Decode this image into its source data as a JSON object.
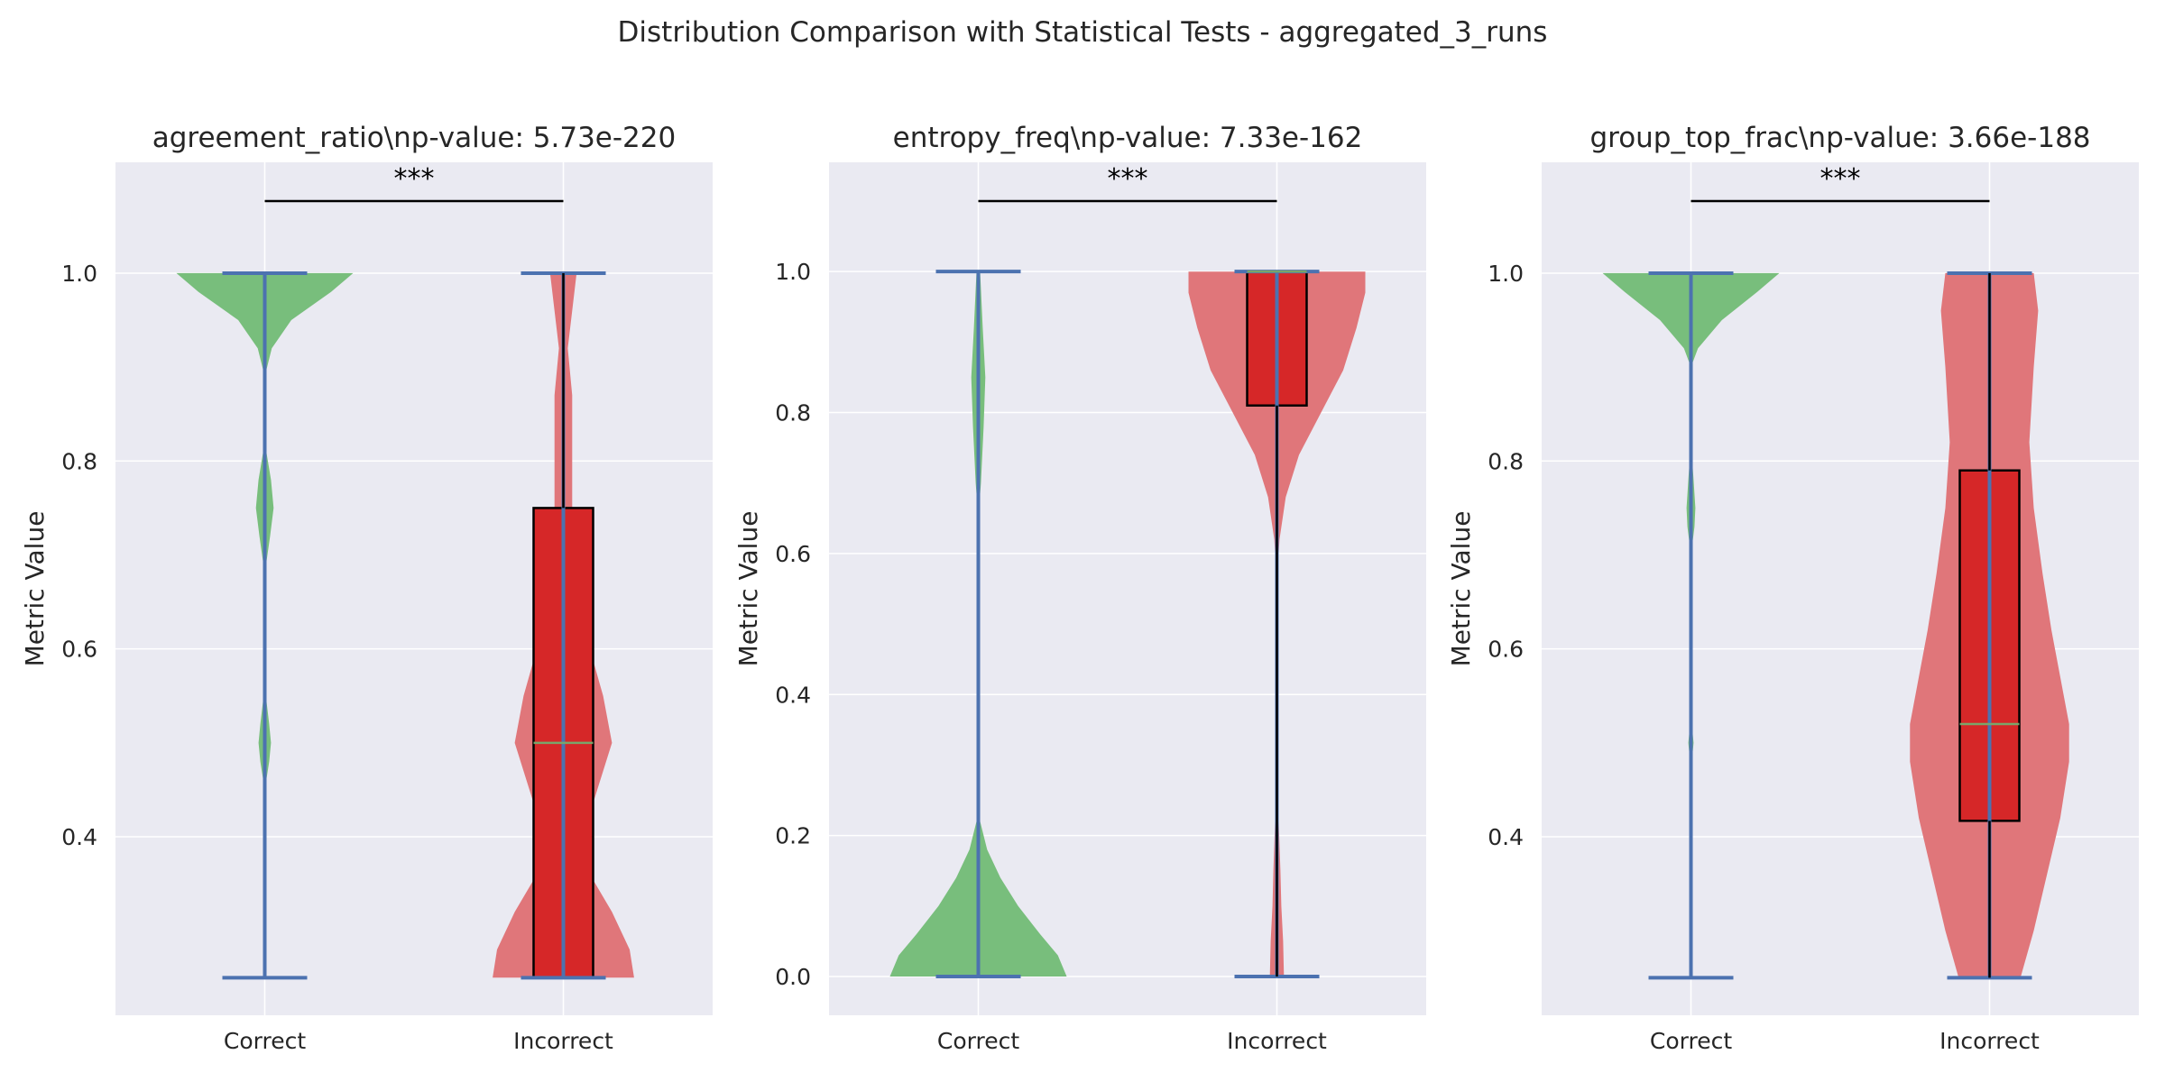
{
  "suptitle": "Distribution Comparison with Statistical Tests - aggregated_3_runs",
  "colors": {
    "correct": "#78be7c",
    "incorrect": "#e0767a",
    "box": "#d62728",
    "whisker": "#4c72b0",
    "median": "#7aa56a",
    "background": "#eaeaf2"
  },
  "chart_data": [
    {
      "type": "violin",
      "title": "agreement_ratio\\np-value: 5.73e-220",
      "ylabel": "Metric Value",
      "categories": [
        "Correct",
        "Incorrect"
      ],
      "ylim": [
        0.21,
        1.118
      ],
      "yticks": [
        "0.4",
        "0.6",
        "0.8",
        "1.0"
      ],
      "significance": "***",
      "grid": true,
      "series": [
        {
          "category": "Correct",
          "min": 0.25,
          "max": 1.0,
          "density": [
            [
              0.25,
              0
            ],
            [
              0.45,
              0
            ],
            [
              0.48,
              0.05
            ],
            [
              0.5,
              0.07
            ],
            [
              0.52,
              0.05
            ],
            [
              0.56,
              0
            ],
            [
              0.68,
              0
            ],
            [
              0.72,
              0.06
            ],
            [
              0.75,
              0.1
            ],
            [
              0.78,
              0.07
            ],
            [
              0.82,
              0
            ],
            [
              0.89,
              0
            ],
            [
              0.92,
              0.08
            ],
            [
              0.95,
              0.3
            ],
            [
              0.98,
              0.75
            ],
            [
              1.0,
              1.0
            ]
          ]
        },
        {
          "category": "Incorrect",
          "min": 0.25,
          "max": 1.0,
          "q1": 0.25,
          "median": 0.5,
          "q3": 0.75,
          "density": [
            [
              0.25,
              0.8
            ],
            [
              0.28,
              0.75
            ],
            [
              0.32,
              0.55
            ],
            [
              0.36,
              0.3
            ],
            [
              0.4,
              0.2
            ],
            [
              0.44,
              0.35
            ],
            [
              0.5,
              0.55
            ],
            [
              0.55,
              0.45
            ],
            [
              0.6,
              0.3
            ],
            [
              0.65,
              0.15
            ],
            [
              0.7,
              0.08
            ],
            [
              0.75,
              0.1
            ],
            [
              0.8,
              0.1
            ],
            [
              0.87,
              0.1
            ],
            [
              0.92,
              0.05
            ],
            [
              0.96,
              0.1
            ],
            [
              1.0,
              0.15
            ]
          ]
        }
      ]
    },
    {
      "type": "violin",
      "title": "entropy_freq\\np-value: 7.33e-162",
      "ylabel": "Metric Value",
      "categories": [
        "Correct",
        "Incorrect"
      ],
      "ylim": [
        -0.055,
        1.155
      ],
      "yticks": [
        "0.0",
        "0.2",
        "0.4",
        "0.6",
        "0.8",
        "1.0"
      ],
      "significance": "***",
      "grid": true,
      "series": [
        {
          "category": "Correct",
          "min": 0.0,
          "max": 1.0,
          "density": [
            [
              0.0,
              1.0
            ],
            [
              0.03,
              0.9
            ],
            [
              0.06,
              0.7
            ],
            [
              0.1,
              0.45
            ],
            [
              0.14,
              0.25
            ],
            [
              0.18,
              0.1
            ],
            [
              0.22,
              0.02
            ],
            [
              0.3,
              0
            ],
            [
              0.65,
              0
            ],
            [
              0.7,
              0.03
            ],
            [
              0.78,
              0.06
            ],
            [
              0.85,
              0.08
            ],
            [
              0.92,
              0.05
            ],
            [
              1.0,
              0.02
            ]
          ]
        },
        {
          "category": "Incorrect",
          "min": 0.0,
          "max": 1.0,
          "q1": 0.81,
          "median": 1.0,
          "q3": 1.0,
          "density": [
            [
              0.0,
              0.08
            ],
            [
              0.05,
              0.07
            ],
            [
              0.1,
              0.05
            ],
            [
              0.15,
              0.04
            ],
            [
              0.22,
              0.02
            ],
            [
              0.3,
              0
            ],
            [
              0.56,
              0
            ],
            [
              0.62,
              0.03
            ],
            [
              0.68,
              0.1
            ],
            [
              0.74,
              0.25
            ],
            [
              0.8,
              0.5
            ],
            [
              0.86,
              0.75
            ],
            [
              0.92,
              0.9
            ],
            [
              0.97,
              1.0
            ],
            [
              1.0,
              1.0
            ]
          ]
        }
      ]
    },
    {
      "type": "violin",
      "title": "group_top_frac\\np-value: 3.66e-188",
      "ylabel": "Metric Value",
      "categories": [
        "Correct",
        "Incorrect"
      ],
      "ylim": [
        0.21,
        1.118
      ],
      "yticks": [
        "0.4",
        "0.6",
        "0.8",
        "1.0"
      ],
      "significance": "***",
      "grid": true,
      "series": [
        {
          "category": "Correct",
          "min": 0.25,
          "max": 1.0,
          "density": [
            [
              0.25,
              0
            ],
            [
              0.47,
              0
            ],
            [
              0.5,
              0.03
            ],
            [
              0.53,
              0
            ],
            [
              0.7,
              0
            ],
            [
              0.73,
              0.04
            ],
            [
              0.75,
              0.05
            ],
            [
              0.78,
              0.03
            ],
            [
              0.82,
              0
            ],
            [
              0.9,
              0
            ],
            [
              0.92,
              0.08
            ],
            [
              0.95,
              0.35
            ],
            [
              0.98,
              0.75
            ],
            [
              1.0,
              1.0
            ]
          ]
        },
        {
          "category": "Incorrect",
          "min": 0.25,
          "max": 1.0,
          "q1": 0.417,
          "median": 0.52,
          "q3": 0.79,
          "density": [
            [
              0.25,
              0.35
            ],
            [
              0.3,
              0.5
            ],
            [
              0.36,
              0.65
            ],
            [
              0.42,
              0.8
            ],
            [
              0.48,
              0.9
            ],
            [
              0.52,
              0.9
            ],
            [
              0.57,
              0.8
            ],
            [
              0.62,
              0.7
            ],
            [
              0.68,
              0.6
            ],
            [
              0.75,
              0.5
            ],
            [
              0.82,
              0.45
            ],
            [
              0.9,
              0.5
            ],
            [
              0.96,
              0.55
            ],
            [
              1.0,
              0.5
            ]
          ]
        }
      ]
    }
  ]
}
